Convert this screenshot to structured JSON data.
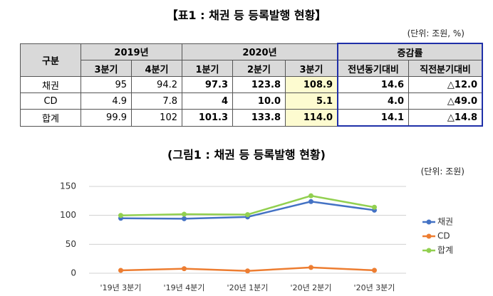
{
  "table_title": "【표1 : 채권 등 등록발행 현황】",
  "table_unit": "(단위: 조원, %)",
  "table": {
    "header_top": [
      "구분",
      "2019년",
      "2020년",
      "증감률"
    ],
    "header_sub": [
      "3분기",
      "4분기",
      "1분기",
      "2분기",
      "3분기",
      "전년동기대비",
      "직전분기대비"
    ],
    "rows": [
      [
        "채권",
        "95",
        "94.2",
        "97.3",
        "123.8",
        "108.9",
        "14.6",
        "△12.0"
      ],
      [
        "CD",
        "4.9",
        "7.8",
        "4",
        "10.0",
        "5.1",
        "4.0",
        "△49.0"
      ],
      [
        "합계",
        "99.9",
        "102",
        "101.3",
        "133.8",
        "114.0",
        "14.1",
        "△14.8"
      ]
    ]
  },
  "chart_data": {
    "type": "line",
    "title": "(그림1 : 채권 등 등록발행 현황)",
    "subtitle": "(단위: 조원)",
    "categories": [
      "'19년 3분기",
      "'19년 4분기",
      "'20년 1분기",
      "'20년 2분기",
      "'20년 3분기"
    ],
    "series": [
      {
        "name": "채권",
        "color": "#4472c4",
        "values": [
          95,
          94.2,
          97.3,
          123.8,
          108.9
        ]
      },
      {
        "name": "CD",
        "color": "#ed7d31",
        "values": [
          4.9,
          7.8,
          4,
          10.0,
          5.1
        ]
      },
      {
        "name": "합계",
        "color": "#92d050",
        "values": [
          99.9,
          102,
          101.3,
          133.8,
          114.0
        ]
      }
    ],
    "ylim": [
      0,
      150
    ],
    "yticks": [
      0,
      50,
      100,
      150
    ],
    "grid": true,
    "legend": "right"
  }
}
